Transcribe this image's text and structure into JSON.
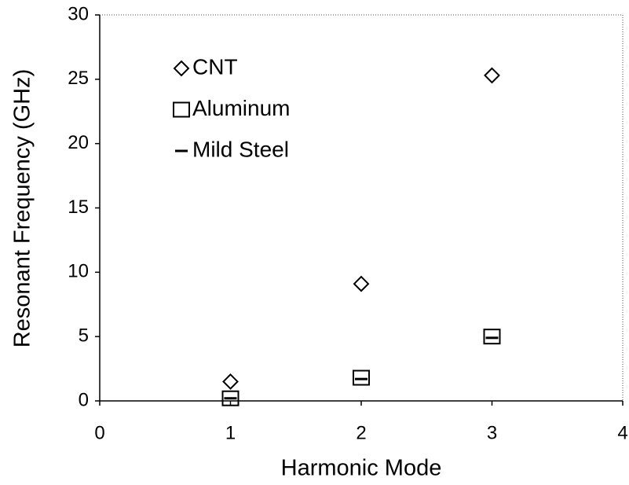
{
  "chart_data": {
    "type": "scatter",
    "x_label": "Harmonic Mode",
    "y_label": "Resonant Frequency (GHz)",
    "xlim": [
      0,
      4
    ],
    "xticks": [
      0,
      1,
      2,
      3,
      4
    ],
    "ylim": [
      0,
      30
    ],
    "yticks": [
      0,
      5,
      10,
      15,
      20,
      25,
      30
    ],
    "legend": "upper left",
    "series": [
      {
        "name": "CNT",
        "color": "#000000",
        "marker": "diamond",
        "x": [
          1,
          2,
          3
        ],
        "values": [
          1.5,
          9.1,
          25.3
        ]
      },
      {
        "name": "Aluminum",
        "color": "#000000",
        "marker": "square",
        "x": [
          1,
          2,
          3
        ],
        "values": [
          0.2,
          1.8,
          5.0
        ]
      },
      {
        "name": "Mild Steel",
        "color": "#000000",
        "marker": "dash",
        "x": [
          1,
          2,
          3
        ],
        "values": [
          0.2,
          1.7,
          4.9
        ]
      }
    ]
  }
}
